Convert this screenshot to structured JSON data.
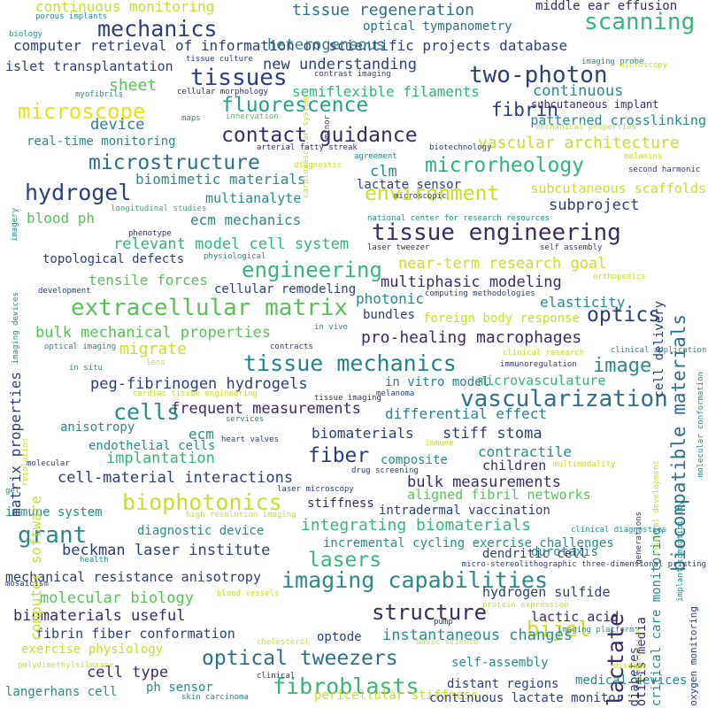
{
  "words": [
    {
      "text": "computer retrieval of information on scientific projects database",
      "color": "#2c3e7a"
    },
    {
      "text": "tissue engineering",
      "color": "#3b2a6a"
    },
    {
      "text": "extracellular matrix",
      "color": "#5ac05a"
    },
    {
      "text": "tissue mechanics",
      "color": "#2a7f8e"
    },
    {
      "text": "vascularization",
      "color": "#2e6f8e"
    },
    {
      "text": "imaging capabilities",
      "color": "#2a8a8a"
    },
    {
      "text": "optical tweezers",
      "color": "#2e6f8e"
    },
    {
      "text": "contact guidance",
      "color": "#3b2a6a"
    },
    {
      "text": "microstructure",
      "color": "#2e6f8e"
    },
    {
      "text": "biophotonics",
      "color": "#c8de28"
    },
    {
      "text": "biocompatible materials",
      "color": "#2e6f8e"
    },
    {
      "text": "fluorescence",
      "color": "#21a38b"
    },
    {
      "text": "fibroblasts",
      "color": "#35b779"
    },
    {
      "text": "engineering",
      "color": "#35b779"
    },
    {
      "text": "microrheology",
      "color": "#2fb47c"
    },
    {
      "text": "environment",
      "color": "#c8de28"
    },
    {
      "text": "structure",
      "color": "#3b2a6a"
    },
    {
      "text": "mechanics",
      "color": "#2c3e7a"
    },
    {
      "text": "two-photon",
      "color": "#2c3e7a"
    },
    {
      "text": "microscope",
      "color": "#e3e418"
    },
    {
      "text": "scanning",
      "color": "#35b779"
    },
    {
      "text": "hydrogel",
      "color": "#2c3e7a"
    },
    {
      "text": "lactate",
      "color": "#3b2a6a"
    },
    {
      "text": "tissues",
      "color": "#2c3e7a"
    },
    {
      "text": "lasers",
      "color": "#35b779"
    },
    {
      "text": "grant",
      "color": "#2a8a8a"
    },
    {
      "text": "cells",
      "color": "#2a8a8a"
    },
    {
      "text": "optics",
      "color": "#2c3e7a"
    },
    {
      "text": "image",
      "color": "#2a8a8a"
    },
    {
      "text": "fiber",
      "color": "#2c3e7a"
    },
    {
      "text": "bijel",
      "color": "#c8de28"
    },
    {
      "text": "fibrin",
      "color": "#2c3e7a"
    },
    {
      "text": "tissue regeneration",
      "color": "#2e6f8e"
    },
    {
      "text": "continuous monitoring",
      "color": "#c8de28"
    },
    {
      "text": "middle ear effusion",
      "color": "#3b2a6a"
    },
    {
      "text": "optical tympanometry",
      "color": "#2e6f8e"
    },
    {
      "text": "heterogeneous",
      "color": "#2a7f8e"
    },
    {
      "text": "islet transplantation",
      "color": "#2c3e7a"
    },
    {
      "text": "new understanding",
      "color": "#2c3e7a"
    },
    {
      "text": "semiflexible filaments",
      "color": "#2fb47c"
    },
    {
      "text": "continuous",
      "color": "#2a8a8a"
    },
    {
      "text": "subcutaneous implant",
      "color": "#3b2a6a"
    },
    {
      "text": "sheet",
      "color": "#5ac05a"
    },
    {
      "text": "patterned crosslinking",
      "color": "#2a8a8a"
    },
    {
      "text": "device",
      "color": "#2a7f8e"
    },
    {
      "text": "real-time monitoring",
      "color": "#2a8a8a"
    },
    {
      "text": "vascular architecture",
      "color": "#c8de28"
    },
    {
      "text": "biomimetic materials",
      "color": "#2a8a8a"
    },
    {
      "text": "clm",
      "color": "#2a8a8a"
    },
    {
      "text": "lactate sensor",
      "color": "#2c3e7a"
    },
    {
      "text": "subcutaneous scaffolds",
      "color": "#c8de28"
    },
    {
      "text": "multianalyte",
      "color": "#2a8a8a"
    },
    {
      "text": "blood ph",
      "color": "#5ac05a"
    },
    {
      "text": "ecm mechanics",
      "color": "#2a8a8a"
    },
    {
      "text": "subproject",
      "color": "#2c3e7a"
    },
    {
      "text": "relevant model cell system",
      "color": "#2fb47c"
    },
    {
      "text": "topological defects",
      "color": "#2c3e7a"
    },
    {
      "text": "near-term research goal",
      "color": "#c8de28"
    },
    {
      "text": "tensile forces",
      "color": "#5ac05a"
    },
    {
      "text": "multiphasic modeling",
      "color": "#3b2a6a"
    },
    {
      "text": "cellular remodeling",
      "color": "#2c3e7a"
    },
    {
      "text": "photonic",
      "color": "#2a8a8a"
    },
    {
      "text": "elasticity",
      "color": "#2a8a8a"
    },
    {
      "text": "bundles",
      "color": "#2c3e7a"
    },
    {
      "text": "foreign body response",
      "color": "#c8de28"
    },
    {
      "text": "bulk mechanical properties",
      "color": "#5ac05a"
    },
    {
      "text": "migrate",
      "color": "#c8de28"
    },
    {
      "text": "pro-healing macrophages",
      "color": "#3b2a6a"
    },
    {
      "text": "peg-fibrinogen hydrogels",
      "color": "#2c3e7a"
    },
    {
      "text": "in vitro model",
      "color": "#2a7f8e"
    },
    {
      "text": "microvasculature",
      "color": "#2fb47c"
    },
    {
      "text": "frequent measurements",
      "color": "#3b2a6a"
    },
    {
      "text": "differential effect",
      "color": "#2a7f8e"
    },
    {
      "text": "anisotropy",
      "color": "#2a8a8a"
    },
    {
      "text": "ecm",
      "color": "#2a8a8a"
    },
    {
      "text": "biomaterials",
      "color": "#2c3e7a"
    },
    {
      "text": "stiff stoma",
      "color": "#2c3e7a"
    },
    {
      "text": "endothelial cells",
      "color": "#2a8a8a"
    },
    {
      "text": "implantation",
      "color": "#35b779"
    },
    {
      "text": "composite",
      "color": "#2a8a8a"
    },
    {
      "text": "contractile",
      "color": "#2a8a8a"
    },
    {
      "text": "children",
      "color": "#3b2a6a"
    },
    {
      "text": "cell-material interactions",
      "color": "#2c3e7a"
    },
    {
      "text": "bulk measurements",
      "color": "#3b2a6a"
    },
    {
      "text": "aligned fibril networks",
      "color": "#5ac05a"
    },
    {
      "text": "immune system",
      "color": "#2a8a8a"
    },
    {
      "text": "stiffness",
      "color": "#3b2a6a"
    },
    {
      "text": "intradermal vaccination",
      "color": "#2c3e7a"
    },
    {
      "text": "diagnostic device",
      "color": "#2a8a8a"
    },
    {
      "text": "integrating biomaterials",
      "color": "#35b779"
    },
    {
      "text": "beckman laser institute",
      "color": "#2c3e7a"
    },
    {
      "text": "incremental cycling exercise challenges",
      "color": "#2a8a8a"
    },
    {
      "text": "durotaxis",
      "color": "#2a8a8a"
    },
    {
      "text": "dendritic cell",
      "color": "#2c3e7a"
    },
    {
      "text": "mechanical resistance anisotropy",
      "color": "#2c3e7a"
    },
    {
      "text": "molecular biology",
      "color": "#5ac05a"
    },
    {
      "text": "hydrogen sulfide",
      "color": "#2c3e7a"
    },
    {
      "text": "biomaterials useful",
      "color": "#3b2a6a"
    },
    {
      "text": "optode",
      "color": "#2c3e7a"
    },
    {
      "text": "lactic acid",
      "color": "#3b2a6a"
    },
    {
      "text": "fibrin fiber conformation",
      "color": "#2c3e7a"
    },
    {
      "text": "instantaneous changes",
      "color": "#2a8a8a"
    },
    {
      "text": "exercise physiology",
      "color": "#c8de28"
    },
    {
      "text": "cell type",
      "color": "#3b2a6a"
    },
    {
      "text": "self-assembly",
      "color": "#2a8a8a"
    },
    {
      "text": "ph sensor",
      "color": "#2a8a8a"
    },
    {
      "text": "distant regions",
      "color": "#2c3e7a"
    },
    {
      "text": "medical devices",
      "color": "#2a8a8a"
    },
    {
      "text": "langerhans cell",
      "color": "#2a8a8a"
    },
    {
      "text": "pericellular stiffness",
      "color": "#c8de28"
    },
    {
      "text": "continuous lactate monitor",
      "color": "#2c3e7a"
    },
    {
      "text": "matrix properties",
      "color": "#2c3e7a"
    },
    {
      "text": "computer software",
      "color": "#c8de28"
    },
    {
      "text": "cell delivery",
      "color": "#2c3e7a"
    },
    {
      "text": "diabetes",
      "color": "#2c3e7a"
    },
    {
      "text": "critical care monitoring",
      "color": "#2a8a8a"
    },
    {
      "text": "otitis media",
      "color": "#3b2a6a"
    },
    {
      "text": "oxygen monitoring",
      "color": "#2c3e7a"
    },
    {
      "text": "porous implants",
      "color": "#2a8a8a"
    },
    {
      "text": "biology",
      "color": "#2a8a8a"
    },
    {
      "text": "tissue culture",
      "color": "#2c3e7a"
    },
    {
      "text": "imaging probe",
      "color": "#2a8a8a"
    },
    {
      "text": "microscopy",
      "color": "#c8de28"
    },
    {
      "text": "myofibrils",
      "color": "#2a8a8a"
    },
    {
      "text": "cellular morphology",
      "color": "#3b2a6a"
    },
    {
      "text": "contrast imaging",
      "color": "#2c3e7a"
    },
    {
      "text": "cardiovascular system",
      "color": "#c8de28"
    },
    {
      "text": "minor",
      "color": "#2c3e7a"
    },
    {
      "text": "maps",
      "color": "#2a8a8a"
    },
    {
      "text": "innervation",
      "color": "#5ac05a"
    },
    {
      "text": "mechanical properties",
      "color": "#c8de28"
    },
    {
      "text": "longitudinal studies",
      "color": "#2fb47c"
    },
    {
      "text": "arterial fatty streak",
      "color": "#3b2a6a"
    },
    {
      "text": "biotechnology",
      "color": "#2c3e7a"
    },
    {
      "text": "melanins",
      "color": "#c8de28"
    },
    {
      "text": "agreement",
      "color": "#2a8a8a"
    },
    {
      "text": "second harmonic",
      "color": "#2c3e7a"
    },
    {
      "text": "diagnostic",
      "color": "#c8de28"
    },
    {
      "text": "microscopic",
      "color": "#2c3e7a"
    },
    {
      "text": "imagery",
      "color": "#2a8a8a"
    },
    {
      "text": "phenotype",
      "color": "#3b2a6a"
    },
    {
      "text": "national center for research resources",
      "color": "#2a8a8a"
    },
    {
      "text": "laser tweezer",
      "color": "#3b2a6a"
    },
    {
      "text": "self assembly",
      "color": "#2c3e7a"
    },
    {
      "text": "physiological",
      "color": "#2a8a8a"
    },
    {
      "text": "imaging devices",
      "color": "#2a8a8a"
    },
    {
      "text": "development",
      "color": "#2c3e7a"
    },
    {
      "text": "computing methodologies",
      "color": "#2c3e7a"
    },
    {
      "text": "orthopedics",
      "color": "#c8de28"
    },
    {
      "text": "in vivo",
      "color": "#2a8a8a"
    },
    {
      "text": "optical imaging",
      "color": "#2a8a8a"
    },
    {
      "text": "contracts",
      "color": "#2c3e7a"
    },
    {
      "text": "clinical research",
      "color": "#c8de28"
    },
    {
      "text": "clinical application",
      "color": "#2a8a8a"
    },
    {
      "text": "in situ",
      "color": "#2a8a8a"
    },
    {
      "text": "lens",
      "color": "#c8de28"
    },
    {
      "text": "immunoregulation",
      "color": "#2c3e7a"
    },
    {
      "text": "molecular conformation",
      "color": "#2a8a8a"
    },
    {
      "text": "cardiac tissue engineering",
      "color": "#c8de28"
    },
    {
      "text": "melanoma",
      "color": "#2c3e7a"
    },
    {
      "text": "tissue imaging",
      "color": "#3b2a6a"
    },
    {
      "text": "resolution",
      "color": "#c8de28"
    },
    {
      "text": "services",
      "color": "#2a8a8a"
    },
    {
      "text": "clinical development",
      "color": "#c8de28"
    },
    {
      "text": "heart valves",
      "color": "#2c3e7a"
    },
    {
      "text": "immune",
      "color": "#c8de28"
    },
    {
      "text": "molecular",
      "color": "#2c3e7a"
    },
    {
      "text": "multimodality",
      "color": "#c8de28"
    },
    {
      "text": "generations",
      "color": "#2c3e7a"
    },
    {
      "text": "implant compatibility",
      "color": "#2a8a8a"
    },
    {
      "text": "drug screening",
      "color": "#2c3e7a"
    },
    {
      "text": "gel",
      "color": "#2a8a8a"
    },
    {
      "text": "laser microscopy",
      "color": "#2c3e7a"
    },
    {
      "text": "high resolution imaging",
      "color": "#c8de28"
    },
    {
      "text": "clinical diagnostics",
      "color": "#2a8a8a"
    },
    {
      "text": "health",
      "color": "#2a8a8a"
    },
    {
      "text": "micro-stereolithographic three-dimensional printing",
      "color": "#2c3e7a"
    },
    {
      "text": "mosaicism",
      "color": "#2c3e7a"
    },
    {
      "text": "blood vessels",
      "color": "#c8de28"
    },
    {
      "text": "protein expression",
      "color": "#c8de28"
    },
    {
      "text": "penetration",
      "color": "#c8de28"
    },
    {
      "text": "imaging platform",
      "color": "#2a8a8a"
    },
    {
      "text": "cholesterol",
      "color": "#c8de28"
    },
    {
      "text": "basic science",
      "color": "#c8de28"
    },
    {
      "text": "pump",
      "color": "#2c3e7a"
    },
    {
      "text": "polydimethylsiloxane",
      "color": "#c8de28"
    },
    {
      "text": "clinical",
      "color": "#2c3e7a"
    },
    {
      "text": "disease",
      "color": "#c8de28"
    },
    {
      "text": "skin carcinoma",
      "color": "#2a8a8a"
    },
    {
      "text": "biological",
      "color": "#2a8a8a"
    }
  ]
}
